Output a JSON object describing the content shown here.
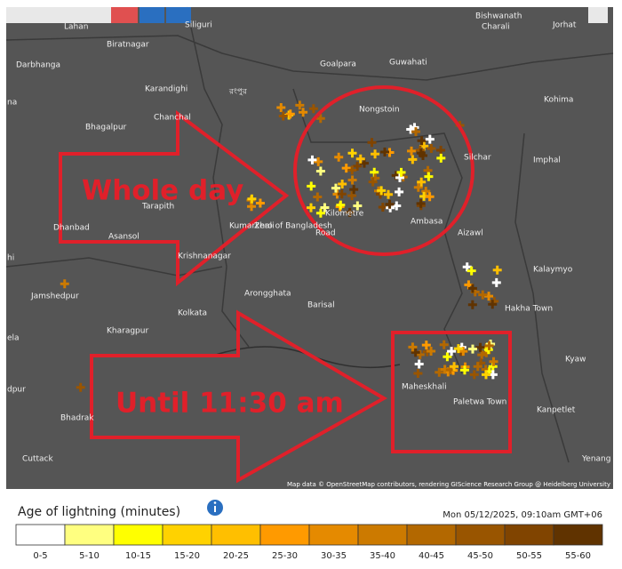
{
  "map": {
    "places": [
      "Lahan",
      "Siliguri",
      "Biratnagar",
      "Darbhanga",
      "Bishwanath",
      "Charali",
      "Jorhat",
      "Goalpara",
      "Guwahati",
      "Karandighi",
      "Kohima",
      "Bhagalpur",
      "Nongstoin",
      "Chanchal",
      "Silchar",
      "Imphal",
      "Tarapith",
      "Dhanbad",
      "Asansol",
      "Kumarkhali",
      "Zero of Bangladesh",
      "Road",
      "Kilometre",
      "Ambasa",
      "Krishnanagar",
      "Aizawl",
      "Kalaymyo",
      "Jamshedpur",
      "Arongghata",
      "Barisal",
      "Kolkata",
      "Hakha Town",
      "Kharagpur",
      "Kyaw",
      "Maheskhali",
      "Paletwa Town",
      "Kanpetlet",
      "Bhadrak",
      "Cuttack",
      "Yenang",
      "na",
      "hi",
      "ela",
      "dpur",
      "রংপুর"
    ],
    "attribution": "Map data © OpenStreetMap contributors, rendering GIScience Research Group @ Heidelberg University"
  },
  "annotations": [
    "Whole day",
    "Until 11:30 am"
  ],
  "legend": {
    "title": "Age of lightning (minutes)",
    "timestamp": "Mon 05/12/2025, 09:10am GMT+06",
    "bins": [
      {
        "label": "0-5",
        "color": "#ffffff"
      },
      {
        "label": "5-10",
        "color": "#ffff80"
      },
      {
        "label": "10-15",
        "color": "#ffff00"
      },
      {
        "label": "15-20",
        "color": "#ffd200"
      },
      {
        "label": "20-25",
        "color": "#ffbf00"
      },
      {
        "label": "25-30",
        "color": "#ff9a00"
      },
      {
        "label": "30-35",
        "color": "#e58a00"
      },
      {
        "label": "35-40",
        "color": "#cc7a00"
      },
      {
        "label": "40-45",
        "color": "#b36800"
      },
      {
        "label": "45-50",
        "color": "#995500"
      },
      {
        "label": "50-55",
        "color": "#804400"
      },
      {
        "label": "55-60",
        "color": "#603300"
      }
    ]
  }
}
